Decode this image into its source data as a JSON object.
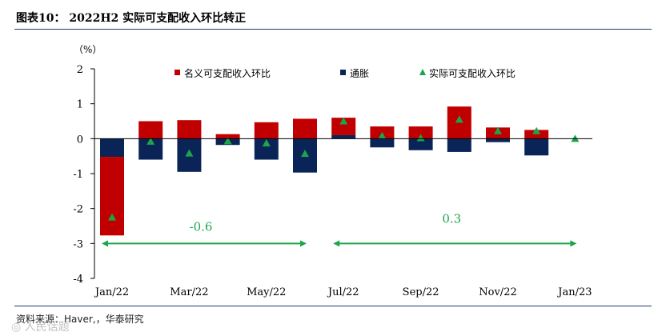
{
  "page": {
    "title": "图表10： 2022H2 实际可支配收入环比转正",
    "source": "资料来源：Haver,，华泰研究",
    "watermark": "◎ 人民话题"
  },
  "chart_data": {
    "type": "bar",
    "unit": "（%）",
    "categories": [
      "Jan/22",
      "Feb/22",
      "Mar/22",
      "Apr/22",
      "May/22",
      "Jun/22",
      "Jul/22",
      "Aug/22",
      "Sep/22",
      "Oct/22",
      "Nov/22",
      "Dec/22",
      "Jan/23"
    ],
    "tick_labels": [
      "Jan/22",
      "Mar/22",
      "May/22",
      "Jul/22",
      "Sep/22",
      "Nov/22",
      "Jan/23"
    ],
    "ylim": [
      -4,
      2
    ],
    "yticks": [
      2,
      1,
      0,
      -1,
      -2,
      -3,
      -4
    ],
    "series": [
      {
        "name": "名义可支配收入环比",
        "kind": "bar",
        "color": "#c00000",
        "values": [
          -2.25,
          0.5,
          0.53,
          0.13,
          0.47,
          0.57,
          0.5,
          0.35,
          0.35,
          0.92,
          0.32,
          0.25,
          null
        ]
      },
      {
        "name": "通胀",
        "kind": "bar",
        "color": "#0b2458",
        "values": [
          -0.52,
          -0.6,
          -0.95,
          -0.18,
          -0.6,
          -0.97,
          0.1,
          -0.25,
          -0.33,
          -0.38,
          -0.1,
          -0.48,
          null
        ]
      },
      {
        "name": "实际可支配收入环比",
        "kind": "marker",
        "color": "#1aa64a",
        "values": [
          -2.25,
          -0.08,
          -0.42,
          -0.07,
          -0.13,
          -0.43,
          0.5,
          0.08,
          0.02,
          0.55,
          0.22,
          0.22,
          0.0
        ]
      }
    ],
    "annotations": [
      {
        "text": "-0.6",
        "from": "Jan/22",
        "to": "Jun/22",
        "color": "#1aa64a"
      },
      {
        "text": "0.3",
        "from": "Jul/22",
        "to": "Jan/23",
        "color": "#1aa64a"
      }
    ],
    "legend_position": "top"
  }
}
